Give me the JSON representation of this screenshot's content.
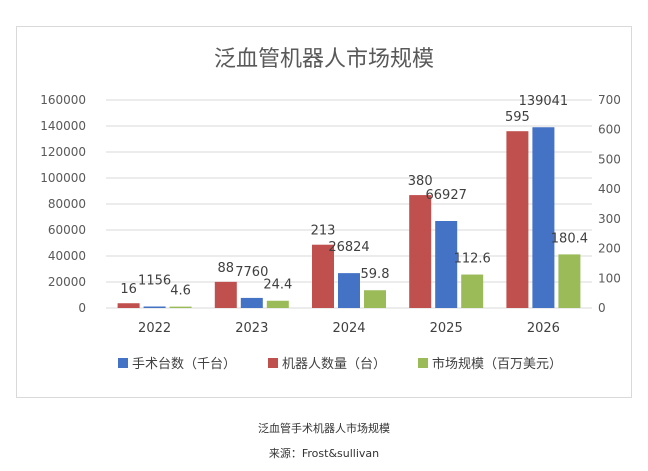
{
  "caption": {
    "title": "泛血管手术机器人市场规模",
    "source": "来源：Frost&sullivan"
  },
  "chart_data": {
    "type": "bar",
    "title": "泛血管机器人市场规模",
    "categories": [
      "2022",
      "2023",
      "2024",
      "2025",
      "2026"
    ],
    "series": [
      {
        "name": "手术台数（千台）",
        "values": [
          1156,
          7760,
          26824,
          66927,
          139041
        ],
        "axis": "left",
        "color": "#4472C4",
        "labels": [
          "1156",
          "7760",
          "26824",
          "66927",
          "139041"
        ]
      },
      {
        "name": "机器人数量（台）",
        "values": [
          16,
          88,
          213,
          380,
          595
        ],
        "axis": "right",
        "color": "#C0504D",
        "labels": [
          "16",
          "88",
          "213",
          "380",
          "595"
        ]
      },
      {
        "name": "市场规模（百万美元）",
        "values": [
          4.6,
          24.4,
          59.8,
          112.6,
          180.4
        ],
        "axis": "right",
        "color": "#9BBB59",
        "labels": [
          "4.6",
          "24.4",
          "59.8",
          "112.6",
          "180.4"
        ]
      }
    ],
    "bar_order": [
      1,
      0,
      2
    ],
    "y_left": {
      "lim": [
        0,
        160000
      ],
      "ticks": [
        "0",
        "20000",
        "40000",
        "60000",
        "80000",
        "100000",
        "120000",
        "140000",
        "160000"
      ]
    },
    "y_right": {
      "lim": [
        0,
        700
      ],
      "ticks": [
        "0",
        "100",
        "200",
        "300",
        "400",
        "500",
        "600",
        "700"
      ]
    },
    "grid": true,
    "legend_position": "bottom"
  }
}
